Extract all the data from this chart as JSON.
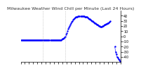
{
  "title": "Milwaukee Weather Wind Chill per Minute (Last 24 Hours)",
  "bg_color": "#ffffff",
  "line_color": "#0000ff",
  "marker": ".",
  "markersize": 1.5,
  "ylim": [
    -50,
    50
  ],
  "yticks": [
    40,
    30,
    20,
    10,
    0,
    -10,
    -20,
    -30,
    -40
  ],
  "ytick_labels": [
    "40",
    "30",
    "20",
    "10",
    "0",
    "-10",
    "-20",
    "-30",
    "-40"
  ],
  "vlines": [
    0.22,
    0.44
  ],
  "vline_color": "#aaaaaa",
  "vline_style": "dotted",
  "data_x": [
    0,
    1,
    2,
    3,
    4,
    5,
    6,
    7,
    8,
    9,
    10,
    11,
    12,
    13,
    14,
    15,
    16,
    17,
    18,
    19,
    20,
    21,
    22,
    23,
    24,
    25,
    26,
    27,
    28,
    29,
    30,
    31,
    32,
    33,
    34,
    35,
    36,
    37,
    38,
    39,
    40,
    41,
    42,
    43,
    44,
    45,
    46,
    47,
    48,
    49,
    50,
    51,
    52,
    53,
    54,
    55,
    56,
    57,
    58,
    59,
    60,
    61,
    62,
    63,
    64,
    65,
    66,
    67,
    68,
    69,
    70,
    71,
    72,
    73,
    74,
    75,
    76,
    77,
    78,
    79,
    80,
    81,
    82,
    83,
    84,
    85,
    86,
    87,
    88,
    89,
    90,
    91,
    92,
    93,
    94,
    95,
    96,
    97,
    98,
    99,
    100,
    101,
    102,
    103,
    104,
    105,
    106,
    107,
    108,
    109,
    110,
    111,
    112,
    113,
    114,
    115,
    116,
    117,
    118,
    119,
    120,
    121,
    122,
    123,
    124,
    125,
    126,
    127,
    128,
    129,
    130,
    131,
    132,
    133,
    134,
    135,
    136,
    137,
    138,
    139
  ],
  "data_y": [
    -8,
    -8,
    -8,
    -8,
    -8,
    -8,
    -8,
    -8,
    -8,
    -8,
    -8,
    -8,
    -8,
    -8,
    -8,
    -8,
    -8,
    -8,
    -8,
    -8,
    -8,
    -8,
    -8,
    -8,
    -8,
    -8,
    -8,
    -7,
    -7,
    -7,
    -7,
    -7,
    -7,
    -7,
    -7,
    -7,
    -7,
    -7,
    -7,
    -7,
    -7,
    -7,
    -7,
    -7,
    -7,
    -7,
    -7,
    -7,
    -8,
    -8,
    -8,
    -8,
    -8,
    -8,
    -8,
    -7,
    -7,
    -6,
    -5,
    -4,
    -3,
    -2,
    0,
    3,
    6,
    10,
    14,
    17,
    20,
    23,
    26,
    28,
    30,
    32,
    34,
    35,
    36,
    37,
    38,
    38,
    39,
    39,
    39,
    39,
    39,
    39,
    39,
    39,
    39,
    38,
    38,
    37,
    37,
    36,
    35,
    34,
    33,
    32,
    31,
    30,
    29,
    28,
    27,
    26,
    25,
    24,
    23,
    22,
    21,
    20,
    20,
    19,
    19,
    19,
    20,
    20,
    21,
    22,
    23,
    24,
    24,
    25,
    26,
    27,
    28,
    29,
    null,
    null,
    null,
    null,
    null,
    -20,
    -30,
    -35,
    -40,
    -42,
    -44,
    -46,
    -48,
    -50
  ],
  "right_yaxis": true,
  "spine_right": true,
  "spine_left": false,
  "spine_top": false,
  "spine_bottom": true,
  "xtick_count": 25,
  "title_fontsize": 4.5,
  "tick_fontsize": 3.5
}
